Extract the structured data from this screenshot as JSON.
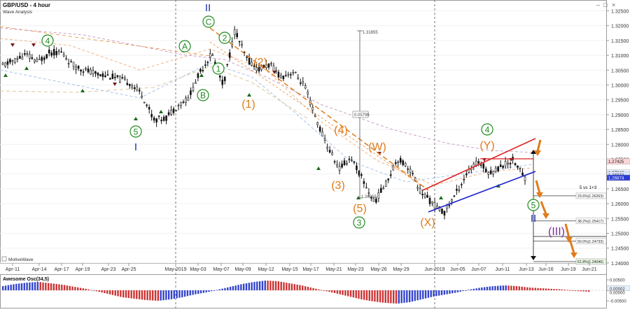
{
  "header": {
    "title": "GBP/USD - 4 hour",
    "subtitle": "Wave Analysis",
    "window_controls": [
      "–",
      "□",
      "×"
    ]
  },
  "footer": {
    "watermark": "MotiveWave"
  },
  "oscillator": {
    "title": "Awesome Osc(34,5)",
    "tick_labels": [
      "0.00500",
      "0.00002",
      "0.00000",
      "-0.00500"
    ]
  },
  "chart_data": {
    "type": "candlestick",
    "title": "GBP/USD - 4 hour",
    "subtitle": "Wave Analysis",
    "y_tick_labels": [
      "1.32500",
      "1.32000",
      "1.31500",
      "1.31000",
      "1.30500",
      "1.30000",
      "1.29500",
      "1.29000",
      "1.28500",
      "1.28000",
      "1.27500",
      "1.27000",
      "1.26500",
      "1.26000",
      "1.25500",
      "1.25000",
      "1.24500",
      "1.24000"
    ],
    "ylim": [
      1.238,
      1.328
    ],
    "x_tick_labels": [
      "Apr-11",
      "Apr-14",
      "Apr-17",
      "Apr-19",
      "Apr-23",
      "Apr-25",
      "May-2019",
      "May-03",
      "May-07",
      "May-09",
      "May-12",
      "May-15",
      "May-17",
      "May-21",
      "May-23",
      "May-26",
      "May-29",
      "Jun-2019",
      "Jun-05",
      "Jun-07",
      "Jun-11",
      "Jun-13",
      "Jun-16",
      "Jun-19",
      "Jun-21"
    ],
    "price_path": [
      1.3065,
      1.3083,
      1.3102,
      1.3078,
      1.3108,
      1.3112,
      1.3068,
      1.3051,
      1.3038,
      1.3032,
      1.3021,
      1.3006,
      1.2968,
      1.2884,
      1.2887,
      1.2929,
      1.2955,
      1.3044,
      1.3106,
      1.2999,
      1.3184,
      1.3089,
      1.3053,
      1.3069,
      1.3027,
      1.3045,
      1.2998,
      1.2884,
      1.2791,
      1.2717,
      1.2757,
      1.2682,
      1.2604,
      1.2667,
      1.2752,
      1.2723,
      1.264,
      1.2602,
      1.2568,
      1.2631,
      1.2703,
      1.2742,
      1.2702,
      1.2728,
      1.2747,
      1.2688
    ],
    "price_labels": [
      {
        "text": "1.27425",
        "value": 1.27425
      },
      {
        "text": "1.27046",
        "value": 1.27046
      },
      {
        "text": "1.26974",
        "value": 1.26974
      },
      {
        "text": "1.26874",
        "value": 1.26874
      }
    ],
    "fib_levels": [
      {
        "text": "23.6%(1.26263)",
        "value": 1.26263
      },
      {
        "text": "38.2%(1.25417)",
        "value": 1.25417
      },
      {
        "text": "50.0%(1.24733)",
        "value": 1.24733
      },
      {
        "text": "61.8%(1.24046)",
        "value": 1.24046
      }
    ],
    "fib_note": "5 vs 1+3",
    "measure_labels": [
      "1.31855",
      "0.05796",
      "1.26059"
    ],
    "wave_labels": [
      {
        "text": "4",
        "style": "green-circle"
      },
      {
        "text": "5",
        "style": "green-circle"
      },
      {
        "text": "I",
        "style": "blue"
      },
      {
        "text": "A",
        "style": "green-circle"
      },
      {
        "text": "B",
        "style": "green-circle"
      },
      {
        "text": "C",
        "style": "green-circle"
      },
      {
        "text": "II",
        "style": "blue"
      },
      {
        "text": "1",
        "style": "green-circle"
      },
      {
        "text": "2",
        "style": "green-circle"
      },
      {
        "text": "(1)",
        "style": "orange"
      },
      {
        "text": "(2)",
        "style": "orange"
      },
      {
        "text": "(3)",
        "style": "orange"
      },
      {
        "text": "(4)",
        "style": "orange"
      },
      {
        "text": "(5)",
        "style": "orange"
      },
      {
        "text": "3",
        "style": "green-circle"
      },
      {
        "text": "(W)",
        "style": "orange"
      },
      {
        "text": "(X)",
        "style": "orange"
      },
      {
        "text": "4",
        "style": "green-circle"
      },
      {
        "text": "(Y)",
        "style": "orange"
      },
      {
        "text": "5",
        "style": "green-circle"
      },
      {
        "text": "II",
        "style": "blue"
      },
      {
        "text": "(III)",
        "style": "purple"
      }
    ],
    "colors": {
      "up_candle": "#111111",
      "down_candle": "#111111",
      "osc_up": "#3344cc",
      "osc_down": "#cc3333",
      "wave_green": "#1e8a1e",
      "wave_orange": "#e07b1a",
      "wave_blue": "#1a2fa8",
      "wave_purple": "#7a2a9a",
      "channel_top": "#e02020",
      "channel_bottom": "#1a22cc",
      "forecast_arrows": "#e07b1a"
    }
  }
}
